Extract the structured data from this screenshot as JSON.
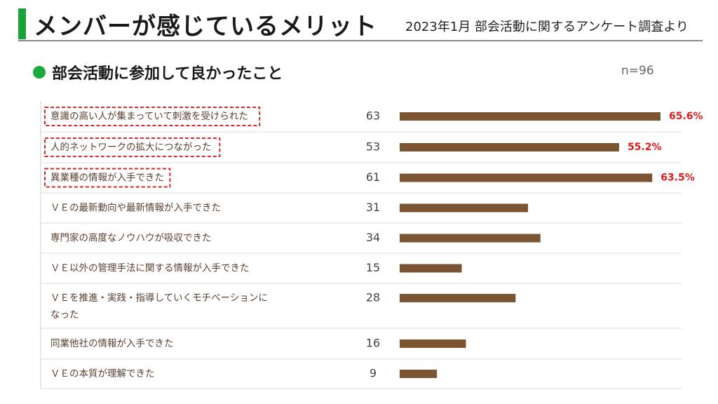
{
  "header": {
    "title": "メンバーが感じているメリット",
    "subtitle": "2023年1月 部会活動に関するアンケート調査より"
  },
  "section": {
    "title": "部会活動に参加して良かったこと",
    "sample_size": "n=96"
  },
  "colors": {
    "accent_green": "#1aaa3e",
    "bar": "#7b5432",
    "highlight_text": "#e01b1b",
    "highlight_border": "#d42a2a",
    "label_text": "#5a4030"
  },
  "chart_data": {
    "type": "bar",
    "orientation": "horizontal",
    "categories": [
      [
        "意識の高い人が集まっていて刺激を受けられた"
      ],
      [
        "人的ネットワークの拡大につながった"
      ],
      [
        "異業種の情報が入手できた"
      ],
      [
        "ＶＥの最新動向や最新情報が入手できた"
      ],
      [
        "専門家の高度なノウハウが吸収できた"
      ],
      [
        "ＶＥ以外の管理手法に関する情報が入手できた"
      ],
      [
        "ＶＥを推進・実践・指導していくモチベーションに",
        "なった"
      ],
      [
        "同業他社の情報が入手できた"
      ],
      [
        "ＶＥの本質が理解できた"
      ]
    ],
    "values": [
      63,
      53,
      61,
      31,
      34,
      15,
      28,
      16,
      9
    ],
    "value_labels": [
      "63",
      "53",
      "61",
      "31",
      "34",
      "15",
      "28",
      "16",
      "9"
    ],
    "highlighted": [
      true,
      true,
      true,
      false,
      false,
      false,
      false,
      false,
      false
    ],
    "percent_labels": [
      "65.6%",
      "55.2%",
      "63.5%",
      null,
      null,
      null,
      null,
      null,
      null
    ],
    "xlim": [
      0,
      63
    ],
    "grid": false,
    "legend": "none"
  }
}
